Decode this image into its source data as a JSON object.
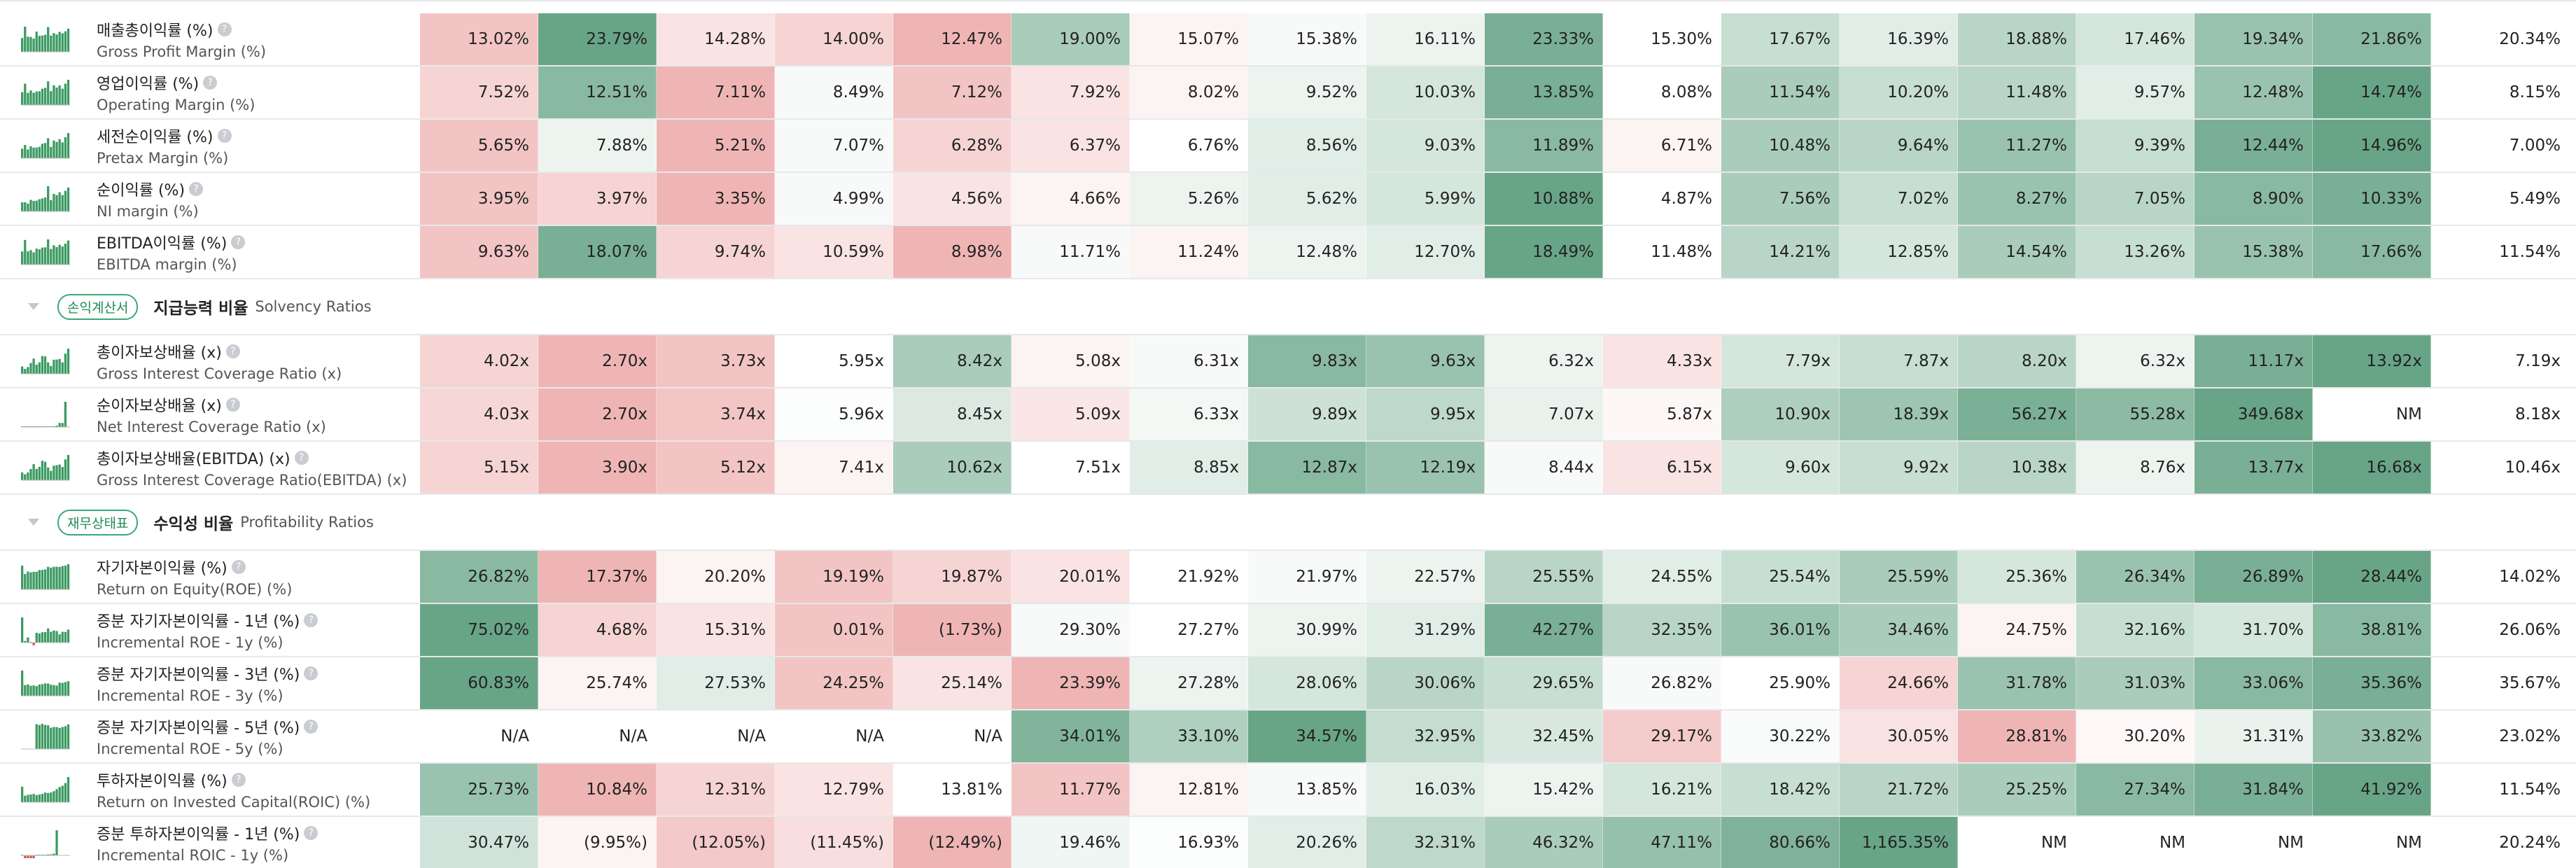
{
  "rows_top": [
    {
      "ko": "매출총이익률 (%)",
      "en": "Gross Profit Margin (%)",
      "values": [
        "13.02%",
        "23.79%",
        "14.28%",
        "14.00%",
        "12.47%",
        "19.00%",
        "15.07%",
        "15.38%",
        "16.11%",
        "23.33%",
        "15.30%",
        "17.67%",
        "16.39%",
        "18.88%",
        "17.46%",
        "19.34%",
        "21.86%"
      ],
      "last": "20.34%"
    },
    {
      "ko": "영업이익률 (%)",
      "en": "Operating Margin (%)",
      "values": [
        "7.52%",
        "12.51%",
        "7.11%",
        "8.49%",
        "7.12%",
        "7.92%",
        "8.02%",
        "9.52%",
        "10.03%",
        "13.85%",
        "8.08%",
        "11.54%",
        "10.20%",
        "11.48%",
        "9.57%",
        "12.48%",
        "14.74%"
      ],
      "last": "8.15%"
    },
    {
      "ko": "세전순이익률 (%)",
      "en": "Pretax Margin (%)",
      "values": [
        "5.65%",
        "7.88%",
        "5.21%",
        "7.07%",
        "6.28%",
        "6.37%",
        "6.76%",
        "8.56%",
        "9.03%",
        "11.89%",
        "6.71%",
        "10.48%",
        "9.64%",
        "11.27%",
        "9.39%",
        "12.44%",
        "14.96%"
      ],
      "last": "7.00%"
    },
    {
      "ko": "순이익률 (%)",
      "en": "NI margin (%)",
      "values": [
        "3.95%",
        "3.97%",
        "3.35%",
        "4.99%",
        "4.56%",
        "4.66%",
        "5.26%",
        "5.62%",
        "5.99%",
        "10.88%",
        "4.87%",
        "7.56%",
        "7.02%",
        "8.27%",
        "7.05%",
        "8.90%",
        "10.33%"
      ],
      "last": "5.49%"
    },
    {
      "ko": "EBITDA이익률 (%)",
      "en": "EBITDA margin (%)",
      "values": [
        "9.63%",
        "18.07%",
        "9.74%",
        "10.59%",
        "8.98%",
        "11.71%",
        "11.24%",
        "12.48%",
        "12.70%",
        "18.49%",
        "11.48%",
        "14.21%",
        "12.85%",
        "14.54%",
        "13.26%",
        "15.38%",
        "17.66%"
      ],
      "last": "11.54%"
    }
  ],
  "sections": [
    {
      "badge": "손익계산서",
      "title": "지급능력 비율",
      "subtitle": "Solvency Ratios",
      "rows": [
        {
          "ko": "총이자보상배율 (x)",
          "en": "Gross Interest Coverage Ratio (x)",
          "values": [
            "4.02x",
            "2.70x",
            "3.73x",
            "5.95x",
            "8.42x",
            "5.08x",
            "6.31x",
            "9.83x",
            "9.63x",
            "6.32x",
            "4.33x",
            "7.79x",
            "7.87x",
            "8.20x",
            "6.32x",
            "11.17x",
            "13.92x"
          ],
          "last": "7.19x"
        },
        {
          "ko": "순이자보상배율 (x)",
          "en": "Net Interest Coverage Ratio (x)",
          "values": [
            "4.03x",
            "2.70x",
            "3.74x",
            "5.96x",
            "8.45x",
            "5.09x",
            "6.33x",
            "9.89x",
            "9.95x",
            "7.07x",
            "5.87x",
            "10.90x",
            "18.39x",
            "56.27x",
            "55.28x",
            "349.68x",
            "NM"
          ],
          "last": "8.18x"
        },
        {
          "ko": "총이자보상배율(EBITDA) (x)",
          "en": "Gross Interest Coverage Ratio(EBITDA) (x)",
          "values": [
            "5.15x",
            "3.90x",
            "5.12x",
            "7.41x",
            "10.62x",
            "7.51x",
            "8.85x",
            "12.87x",
            "12.19x",
            "8.44x",
            "6.15x",
            "9.60x",
            "9.92x",
            "10.38x",
            "8.76x",
            "13.77x",
            "16.68x"
          ],
          "last": "10.46x"
        }
      ]
    },
    {
      "badge": "재무상태표",
      "title": "수익성 비율",
      "subtitle": "Profitability Ratios",
      "rows": [
        {
          "ko": "자기자본이익률 (%)",
          "en": "Return on Equity(ROE) (%)",
          "values": [
            "26.82%",
            "17.37%",
            "20.20%",
            "19.19%",
            "19.87%",
            "20.01%",
            "21.92%",
            "21.97%",
            "22.57%",
            "25.55%",
            "24.55%",
            "25.54%",
            "25.59%",
            "25.36%",
            "26.34%",
            "26.89%",
            "28.44%"
          ],
          "last": "14.02%"
        },
        {
          "ko": "증분 자기자본이익률 - 1년 (%)",
          "en": "Incremental ROE - 1y (%)",
          "values": [
            "75.02%",
            "4.68%",
            "15.31%",
            "0.01%",
            "(1.73%)",
            "29.30%",
            "27.27%",
            "30.99%",
            "31.29%",
            "42.27%",
            "32.35%",
            "36.01%",
            "34.46%",
            "24.75%",
            "32.16%",
            "31.70%",
            "38.81%"
          ],
          "last": "26.06%"
        },
        {
          "ko": "증분 자기자본이익률 - 3년 (%)",
          "en": "Incremental ROE - 3y (%)",
          "values": [
            "60.83%",
            "25.74%",
            "27.53%",
            "24.25%",
            "25.14%",
            "23.39%",
            "27.28%",
            "28.06%",
            "30.06%",
            "29.65%",
            "26.82%",
            "25.90%",
            "24.66%",
            "31.78%",
            "31.03%",
            "33.06%",
            "35.36%"
          ],
          "last": "35.67%"
        },
        {
          "ko": "증분 자기자본이익률 - 5년 (%)",
          "en": "Incremental ROE - 5y (%)",
          "values": [
            "N/A",
            "N/A",
            "N/A",
            "N/A",
            "N/A",
            "34.01%",
            "33.10%",
            "34.57%",
            "32.95%",
            "32.45%",
            "29.17%",
            "30.22%",
            "30.05%",
            "28.81%",
            "30.20%",
            "31.31%",
            "33.82%"
          ],
          "last": "23.02%"
        },
        {
          "ko": "투하자본이익률 (%)",
          "en": "Return on Invested Capital(ROIC) (%)",
          "values": [
            "25.73%",
            "10.84%",
            "12.31%",
            "12.79%",
            "13.81%",
            "11.77%",
            "12.81%",
            "13.85%",
            "16.03%",
            "15.42%",
            "16.21%",
            "18.42%",
            "21.72%",
            "25.25%",
            "27.34%",
            "31.84%",
            "41.92%"
          ],
          "last": "11.54%"
        },
        {
          "ko": "증분 투하자본이익률 - 1년 (%)",
          "en": "Incremental ROIC - 1y (%)",
          "values": [
            "30.47%",
            "(9.95%)",
            "(12.05%)",
            "(11.45%)",
            "(12.49%)",
            "19.46%",
            "16.93%",
            "20.26%",
            "32.31%",
            "46.32%",
            "47.11%",
            "80.66%",
            "1,165.35%",
            "NM",
            "NM",
            "NM",
            "NM"
          ],
          "last": "20.24%"
        }
      ]
    }
  ]
}
